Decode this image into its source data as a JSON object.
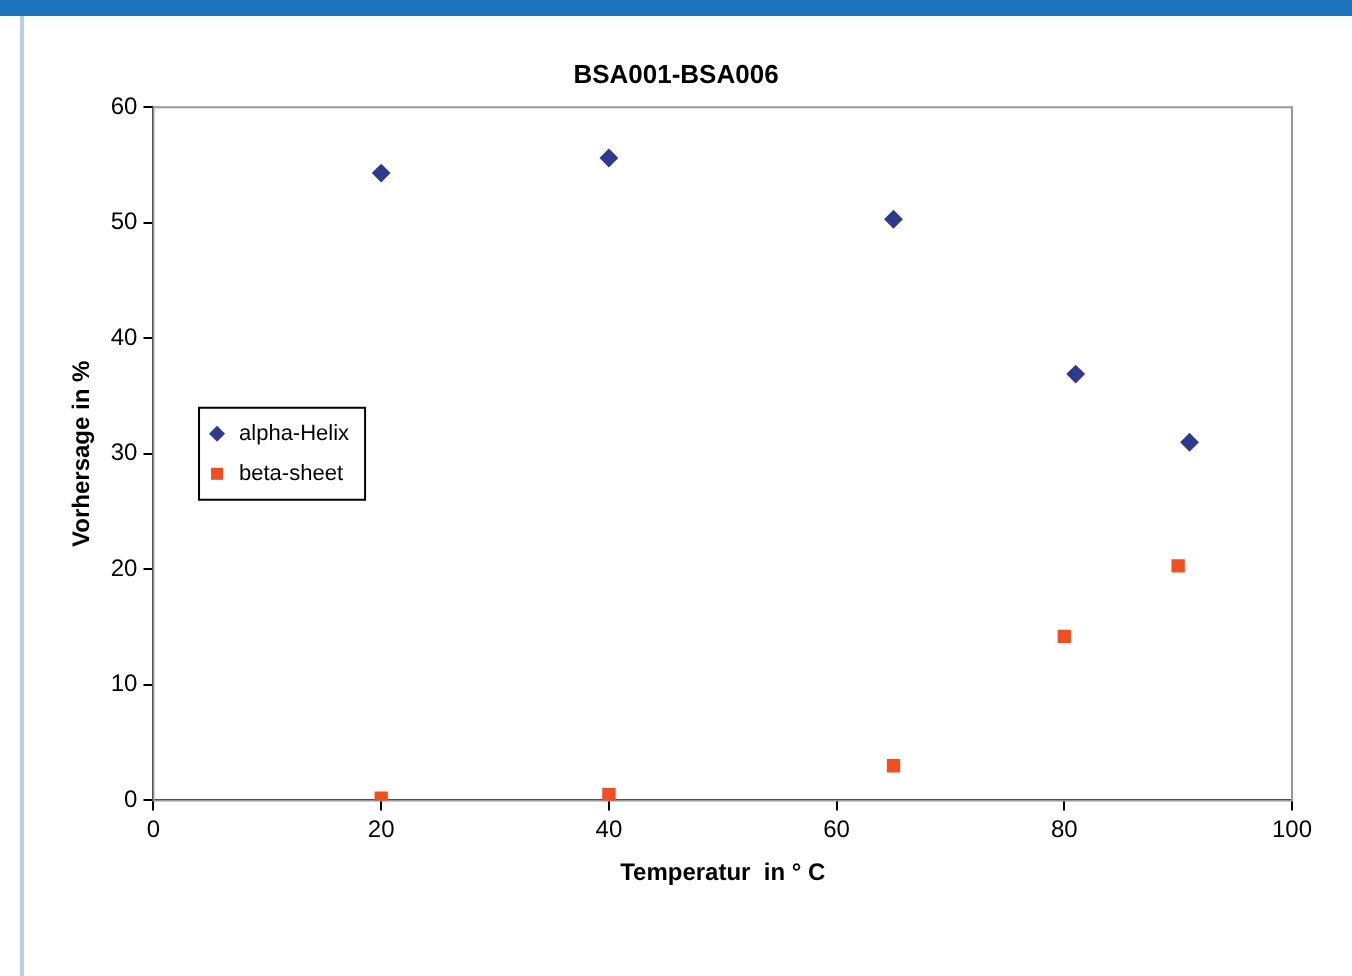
{
  "chart_data": {
    "type": "scatter",
    "title": "BSA001-BSA006",
    "xlabel": "Temperatur  in ° C",
    "ylabel": "Vorhersage in %",
    "xlim": [
      0,
      100
    ],
    "xticks": [
      0,
      20,
      40,
      60,
      80,
      100
    ],
    "ylim": [
      0,
      60
    ],
    "yticks": [
      0,
      10,
      20,
      30,
      40,
      50,
      60
    ],
    "grid": false,
    "legend": "left",
    "series": [
      {
        "name": "alpha-Helix",
        "color": "#2e3a8c",
        "marker": "diamond",
        "x": [
          20,
          40,
          65,
          81,
          91
        ],
        "values": [
          54.3,
          55.6,
          50.3,
          36.9,
          31
        ]
      },
      {
        "name": "beta-sheet",
        "color": "#f04e23",
        "marker": "square",
        "x": [
          20,
          40,
          65,
          80,
          90
        ],
        "values": [
          0.2,
          0.5,
          3,
          14.2,
          20.3
        ]
      }
    ]
  }
}
